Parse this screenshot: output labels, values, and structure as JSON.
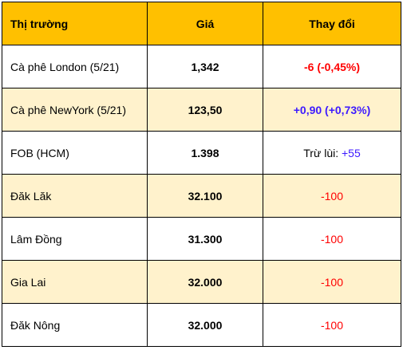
{
  "table": {
    "headers": {
      "market": "Thị trường",
      "price": "Giá",
      "change": "Thay đổi"
    },
    "rows": [
      {
        "market": "Cà phê London (5/21)",
        "price": "1,342",
        "change": "-6 (-0,45%)"
      },
      {
        "market": "Cà phê NewYork (5/21)",
        "price": "123,50",
        "change": "+0,90 (+0,73%)"
      },
      {
        "market": "FOB (HCM)",
        "price": "1.398",
        "change_prefix": "Trừ lùi: ",
        "change_value": "+55"
      },
      {
        "market": "Đăk Lăk",
        "price": "32.100",
        "change": "-100"
      },
      {
        "market": "Lâm Đồng",
        "price": "31.300",
        "change": "-100"
      },
      {
        "market": "Gia Lai",
        "price": "32.000",
        "change": "-100"
      },
      {
        "market": "Đăk Nông",
        "price": "32.000",
        "change": "-100"
      }
    ]
  },
  "colors": {
    "header_bg": "#ffc000",
    "alt_row_bg": "#fff2cc",
    "negative": "#ff0000",
    "positive": "#3d1aff"
  }
}
